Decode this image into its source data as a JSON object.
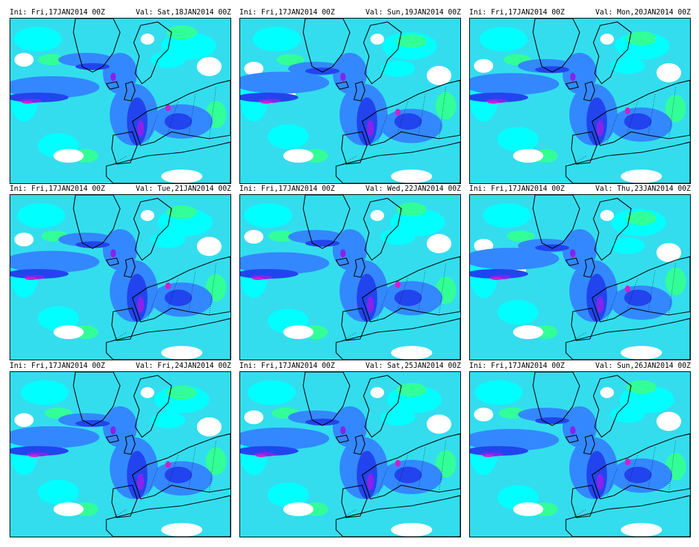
{
  "panels": [
    {
      "ini": "Ini: Fri,17JAN2014 00Z",
      "val": "Val: Sat,18JAN2014 00Z"
    },
    {
      "ini": "Ini: Fri,17JAN2014 00Z",
      "val": "Val: Sun,19JAN2014 00Z"
    },
    {
      "ini": "Ini: Fri,17JAN2014 00Z",
      "val": "Val: Mon,20JAN2014 00Z"
    },
    {
      "ini": "Ini: Fri,17JAN2014 00Z",
      "val": "Val: Tue,21JAN2014 00Z"
    },
    {
      "ini": "Ini: Fri,17JAN2014 00Z",
      "val": "Val: Wed,22JAN2014 00Z"
    },
    {
      "ini": "Ini: Fri,17JAN2014 00Z",
      "val": "Val: Thu,23JAN2014 00Z"
    },
    {
      "ini": "Ini: Fri,17JAN2014 00Z",
      "val": "Val: Fri,24JAN2014 00Z"
    },
    {
      "ini": "Ini: Fri,17JAN2014 00Z",
      "val": "Val: Sat,25JAN2014 00Z"
    },
    {
      "ini": "Ini: Fri,17JAN2014 00Z",
      "val": "Val: Sun,26JAN2014 00Z"
    }
  ],
  "colors": {
    "aqua": "#33ddee",
    "cyan": "#00ffff",
    "green": "#33ff99",
    "blue": "#3388ff",
    "deepblue": "#2244ee",
    "violet": "#8822ee",
    "magenta": "#cc22cc",
    "coast": "#000000"
  }
}
